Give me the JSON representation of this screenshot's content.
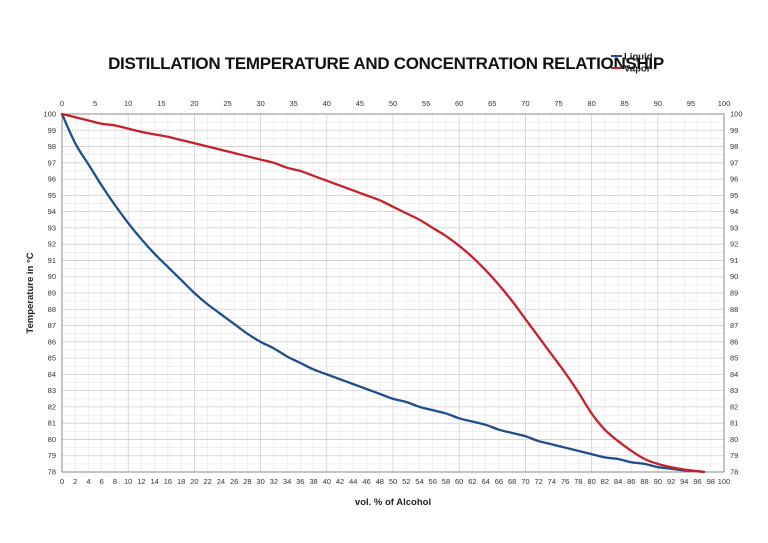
{
  "chart_data": {
    "type": "line",
    "title": "DISTILLATION TEMPERATURE AND CONCENTRATION RELATIONSHIP",
    "xlabel": "vol. % of Alcohol",
    "ylabel": "Temperature in °C",
    "xlim": [
      0,
      100
    ],
    "ylim": [
      78,
      100
    ],
    "x_bottom_ticks": [
      0,
      2,
      4,
      6,
      8,
      10,
      12,
      14,
      16,
      18,
      20,
      22,
      24,
      26,
      28,
      30,
      32,
      34,
      36,
      38,
      40,
      42,
      44,
      46,
      48,
      50,
      52,
      54,
      56,
      58,
      60,
      62,
      64,
      66,
      68,
      70,
      72,
      74,
      76,
      78,
      80,
      82,
      84,
      86,
      88,
      90,
      92,
      94,
      96,
      98,
      100
    ],
    "x_top_ticks": [
      0,
      5,
      10,
      15,
      20,
      25,
      30,
      35,
      40,
      45,
      50,
      55,
      60,
      65,
      70,
      75,
      80,
      85,
      90,
      95,
      100
    ],
    "y_ticks": [
      78,
      79,
      80,
      81,
      82,
      83,
      84,
      85,
      86,
      87,
      88,
      89,
      90,
      91,
      92,
      93,
      94,
      95,
      96,
      97,
      98,
      99,
      100
    ],
    "grid": true,
    "legend_position": "top-right",
    "series": [
      {
        "name": "Liquid",
        "color": "#1f4e8c",
        "x": [
          0,
          2,
          4,
          6,
          8,
          10,
          12,
          14,
          16,
          18,
          20,
          22,
          24,
          26,
          28,
          30,
          32,
          34,
          36,
          38,
          40,
          42,
          44,
          46,
          48,
          50,
          52,
          54,
          56,
          58,
          60,
          62,
          64,
          66,
          68,
          70,
          72,
          74,
          76,
          78,
          80,
          82,
          84,
          86,
          88,
          90,
          92,
          94,
          96,
          97
        ],
        "y": [
          100,
          98.2,
          96.9,
          95.6,
          94.4,
          93.3,
          92.3,
          91.4,
          90.6,
          89.8,
          89.0,
          88.3,
          87.7,
          87.1,
          86.5,
          86.0,
          85.6,
          85.1,
          84.7,
          84.3,
          84.0,
          83.7,
          83.4,
          83.1,
          82.8,
          82.5,
          82.3,
          82.0,
          81.8,
          81.6,
          81.3,
          81.1,
          80.9,
          80.6,
          80.4,
          80.2,
          79.9,
          79.7,
          79.5,
          79.3,
          79.1,
          78.9,
          78.8,
          78.6,
          78.5,
          78.3,
          78.2,
          78.1,
          78.05,
          78.0
        ]
      },
      {
        "name": "Vapor",
        "color": "#c8202a",
        "x": [
          0,
          2,
          4,
          6,
          8,
          10,
          12,
          14,
          16,
          18,
          20,
          22,
          24,
          26,
          28,
          30,
          32,
          34,
          36,
          38,
          40,
          42,
          44,
          46,
          48,
          50,
          52,
          54,
          56,
          58,
          60,
          62,
          64,
          66,
          68,
          70,
          72,
          74,
          76,
          78,
          80,
          82,
          84,
          86,
          88,
          90,
          92,
          94,
          96,
          97
        ],
        "y": [
          100,
          99.8,
          99.6,
          99.4,
          99.3,
          99.1,
          98.9,
          98.75,
          98.6,
          98.4,
          98.2,
          98.0,
          97.8,
          97.6,
          97.4,
          97.2,
          97.0,
          96.7,
          96.5,
          96.2,
          95.9,
          95.6,
          95.3,
          95.0,
          94.7,
          94.3,
          93.9,
          93.5,
          93.0,
          92.5,
          91.9,
          91.2,
          90.4,
          89.5,
          88.5,
          87.4,
          86.3,
          85.2,
          84.1,
          82.9,
          81.6,
          80.6,
          79.9,
          79.3,
          78.8,
          78.5,
          78.3,
          78.15,
          78.05,
          78.0
        ]
      }
    ]
  }
}
